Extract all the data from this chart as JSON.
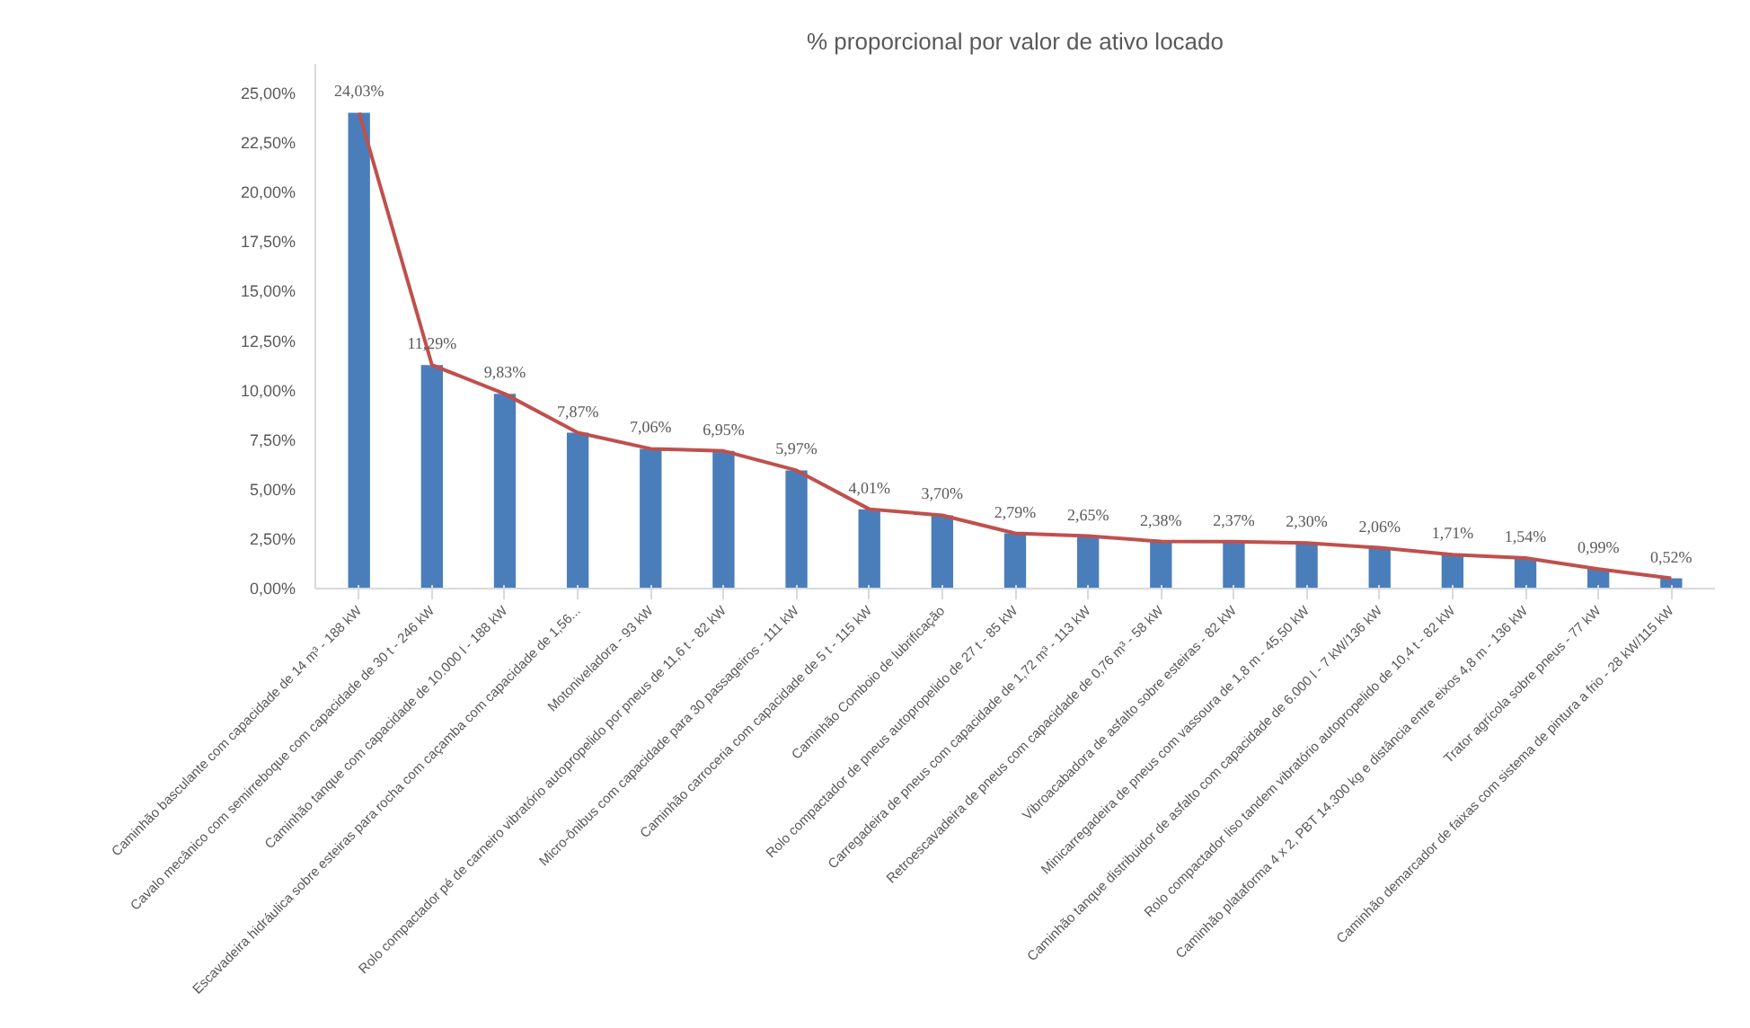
{
  "chart_data": {
    "type": "bar",
    "title": "% proporcional por valor de ativo locado",
    "categories": [
      "Caminhão basculante com capacidade de 14 m³ - 188 kW",
      "Cavalo mecânico com semirreboque com capacidade de 30 t - 246 kW",
      "Caminhão tanque com capacidade de 10.000 l - 188 kW",
      "Escavadeira hidráulica sobre esteiras para rocha com caçamba com capacidade de 1,56...",
      "Motoniveladora - 93 kW",
      "Rolo compactador pé de carneiro vibratório autopropelido por pneus de 11,6 t - 82 kW",
      "Micro-ônibus com capacidade para 30 passageiros - 111 kW",
      "Caminhão carroceria com capacidade de 5 t - 115 kW",
      "Caminhão Comboio de lubrificação",
      "Rolo compactador de pneus autopropelido de 27 t - 85 kW",
      "Carregadeira de pneus com capacidade de 1,72 m³ - 113 kW",
      "Retroescavadeira de pneus com capacidade de 0,76 m³ - 58 kW",
      "Vibroacabadora de asfalto sobre esteiras - 82 kW",
      "Minicarregadeira de pneus com vassoura de 1,8 m - 45,50 kW",
      "Caminhão tanque distribuidor de asfalto com capacidade de 6.000 l - 7 kW/136 kW",
      "Rolo compactador liso tandem vibratório autopropelido de 10,4 t - 82 kW",
      "Caminhão plataforma 4 x 2, PBT 14.300 kg e distância entre eixos 4,8 m - 136 kW",
      "Trator agrícola sobre pneus - 77 kW",
      "Caminhão demarcador de faixas com sistema de pintura a frio - 28 kW/115 kW"
    ],
    "series": [
      {
        "color": "#4a7ebb",
        "values": [
          24.03,
          11.29,
          9.83,
          7.87,
          7.06,
          6.95,
          5.97,
          4.01,
          3.7,
          2.79,
          2.65,
          2.38,
          2.37,
          2.3,
          2.06,
          1.71,
          1.54,
          0.99,
          0.52
        ],
        "value_labels": [
          "24,03%",
          "11,29%",
          "9,83%",
          "7,87%",
          "7,06%",
          "6,95%",
          "5,97%",
          "4,01%",
          "3,70%",
          "2,79%",
          "2,65%",
          "2,38%",
          "2,37%",
          "2,30%",
          "2,06%",
          "1,71%",
          "1,54%",
          "0,99%",
          "0,52%"
        ]
      },
      {
        "type": "line",
        "color": "#c0504d",
        "values": [
          24.03,
          11.29,
          9.83,
          7.87,
          7.06,
          6.95,
          5.97,
          4.01,
          3.7,
          2.79,
          2.65,
          2.38,
          2.37,
          2.3,
          2.06,
          1.71,
          1.54,
          0.99,
          0.52
        ]
      }
    ],
    "ylim": [
      0,
      26.5
    ],
    "yticks": [
      {
        "value": 0,
        "label": "0,00%"
      },
      {
        "value": 2.5,
        "label": "2,50%"
      },
      {
        "value": 5,
        "label": "5,00%"
      },
      {
        "value": 7.5,
        "label": "7,50%"
      },
      {
        "value": 10,
        "label": "10,00%"
      },
      {
        "value": 12.5,
        "label": "12,50%"
      },
      {
        "value": 15,
        "label": "15,00%"
      },
      {
        "value": 17.5,
        "label": "17,50%"
      },
      {
        "value": 20,
        "label": "20,00%"
      },
      {
        "value": 22.5,
        "label": "22,50%"
      },
      {
        "value": 25,
        "label": "25,00%"
      }
    ],
    "grid": false
  }
}
